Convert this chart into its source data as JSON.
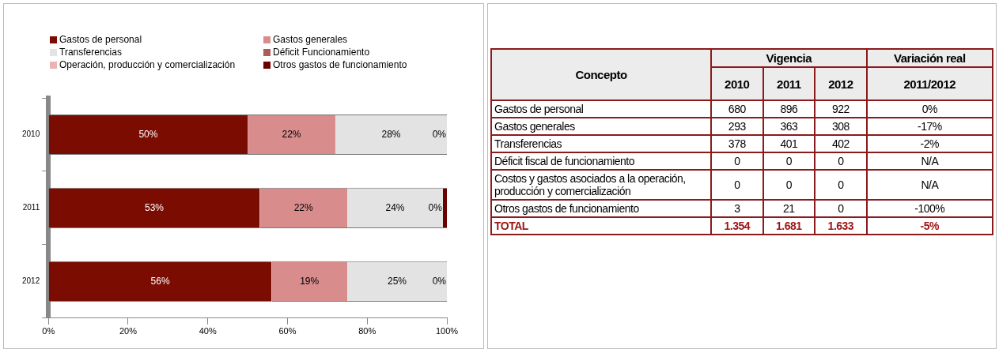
{
  "chart_data": [
    {
      "type": "bar",
      "orientation": "horizontal",
      "stacked": true,
      "categories": [
        "2010",
        "2011",
        "2012"
      ],
      "xlim": [
        0,
        100
      ],
      "xticks": [
        {
          "value": 0,
          "label": "0%"
        },
        {
          "value": 20,
          "label": "20%"
        },
        {
          "value": 40,
          "label": "40%"
        },
        {
          "value": 60,
          "label": "60%"
        },
        {
          "value": 80,
          "label": "80%"
        },
        {
          "value": 100,
          "label": "100%"
        }
      ],
      "grid": false,
      "legend": "top",
      "series": [
        {
          "name": "Gastos de personal",
          "color": "#7a0c02",
          "values": [
            50,
            53,
            56
          ],
          "value_labels": [
            "50%",
            "53%",
            "56%"
          ]
        },
        {
          "name": "Gastos generales",
          "color": "#d98c8c",
          "values": [
            22,
            22,
            19
          ],
          "value_labels": [
            "22%",
            "22%",
            "19%"
          ]
        },
        {
          "name": "Transferencias",
          "color": "#e3e3e3",
          "values": [
            28,
            24,
            25
          ],
          "value_labels": [
            "28%",
            "24%",
            "25%"
          ]
        },
        {
          "name": "Déficit Funcionamiento",
          "color": "#b05a5a",
          "values": [
            0,
            0,
            0
          ],
          "value_labels": [
            "0%",
            "0%",
            "0%"
          ]
        },
        {
          "name": "Operación, producción y comercialización",
          "color": "#e8b4b4",
          "values": [
            0,
            0,
            0
          ]
        },
        {
          "name": "Otros gastos de funcionamiento",
          "color": "#6b0000",
          "values": [
            0,
            1,
            0
          ]
        }
      ]
    },
    {
      "type": "other",
      "annotations": [
        "Concepto",
        "Vigencia",
        "Variación real"
      ],
      "categories": [
        "Gastos de personal",
        "Gastos generales",
        "Transferencias",
        "Déficit fiscal de funcionamiento",
        "Costos y gastos asociados a la operación, producción y comercialización",
        "Otros gastos de funcionamiento",
        "TOTAL"
      ],
      "series": [
        {
          "name": "2010",
          "values": [
            680,
            293,
            378,
            0,
            0,
            3,
            1354
          ],
          "value_labels": [
            "680",
            "293",
            "378",
            "0",
            "0",
            "3",
            "1.354"
          ]
        },
        {
          "name": "2011",
          "values": [
            896,
            363,
            401,
            0,
            0,
            21,
            1681
          ],
          "value_labels": [
            "896",
            "363",
            "401",
            "0",
            "0",
            "21",
            "1.681"
          ]
        },
        {
          "name": "2012",
          "values": [
            922,
            308,
            402,
            0,
            0,
            0,
            1633
          ],
          "value_labels": [
            "922",
            "308",
            "402",
            "0",
            "0",
            "0",
            "1.633"
          ]
        },
        {
          "name": "2011/2012",
          "values": [
            0,
            -17,
            -2,
            null,
            null,
            -100,
            -5
          ],
          "value_labels": [
            "0%",
            "-17%",
            "-2%",
            "N/A",
            "N/A",
            "-100%",
            "-5%"
          ]
        }
      ]
    }
  ]
}
